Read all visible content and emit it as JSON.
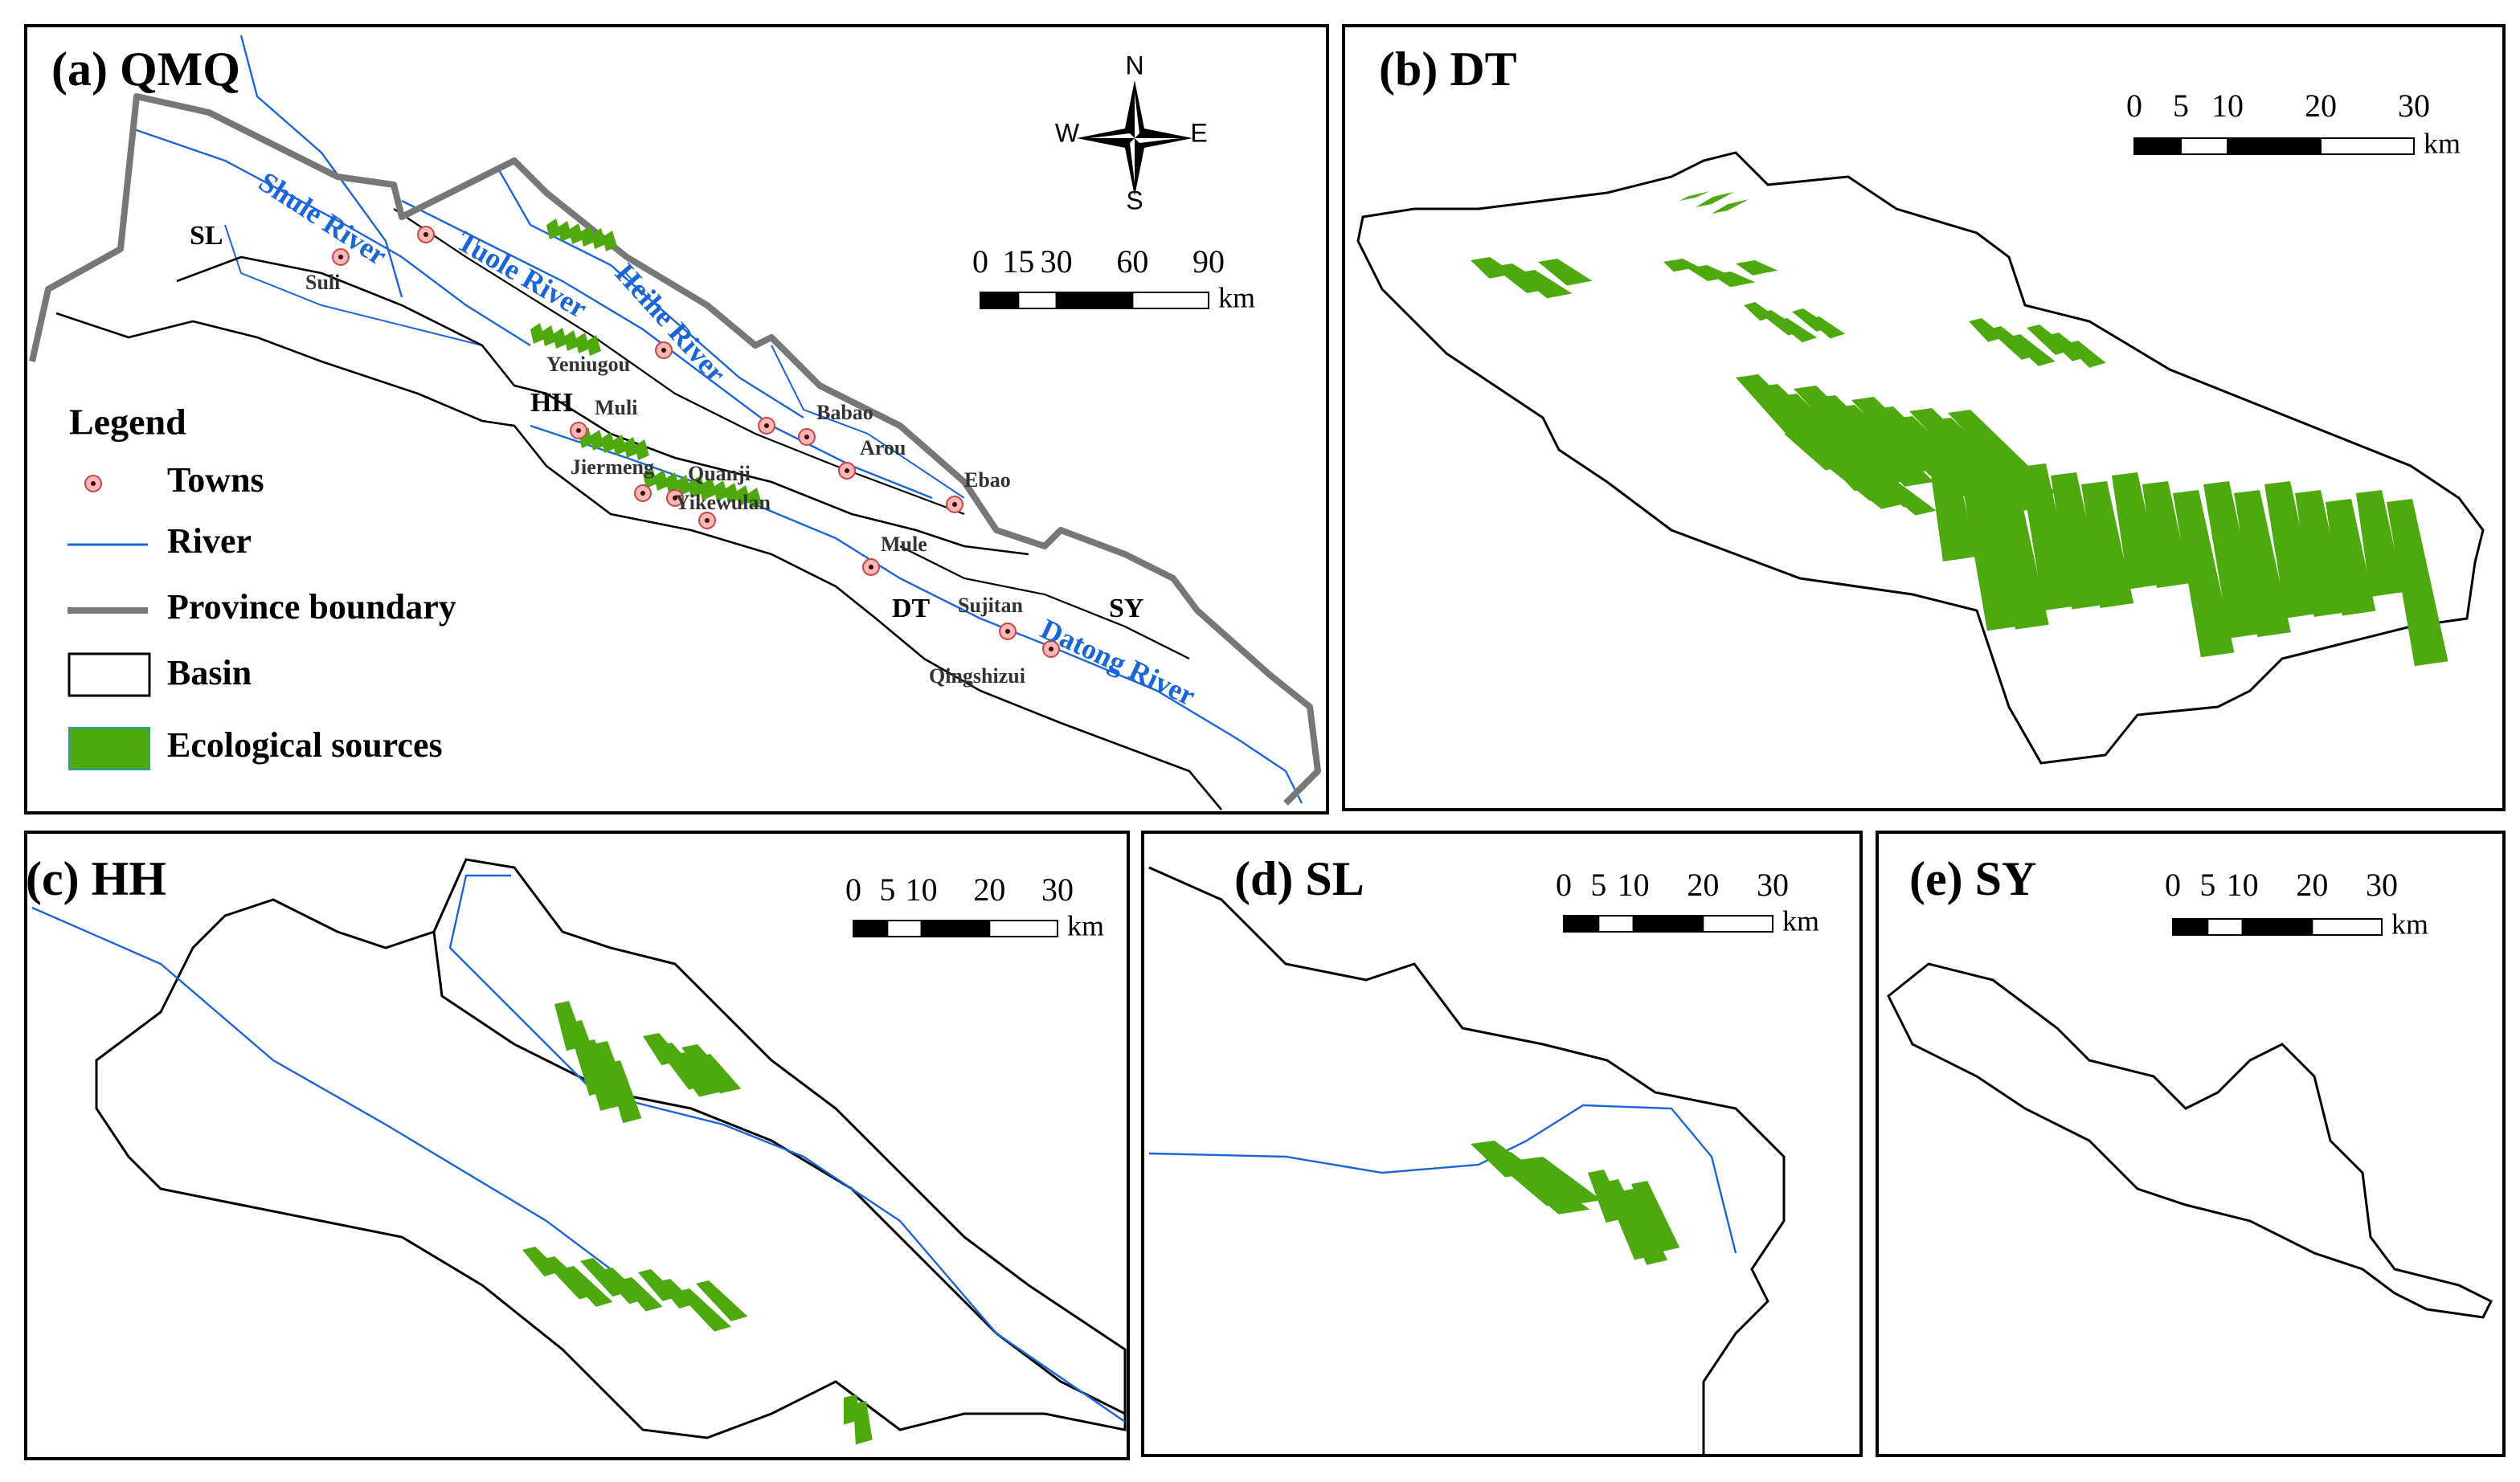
{
  "panels": [
    {
      "title": "(a) QMQ",
      "scale_bar": {
        "ticks": [
          0,
          15,
          30,
          60,
          90
        ],
        "unit": "km"
      }
    },
    {
      "title": "(b) DT",
      "scale_bar": {
        "ticks": [
          0,
          5,
          10,
          20,
          30
        ],
        "unit": "km"
      }
    },
    {
      "title": "(c) HH",
      "scale_bar": {
        "ticks": [
          0,
          5,
          10,
          20,
          30
        ],
        "unit": "km"
      }
    },
    {
      "title": "(d) SL",
      "scale_bar": {
        "ticks": [
          0,
          5,
          10,
          20,
          30
        ],
        "unit": "km"
      }
    },
    {
      "title": "(e) SY",
      "scale_bar": {
        "ticks": [
          0,
          5,
          10,
          20,
          30
        ],
        "unit": "km"
      }
    }
  ],
  "compass": {
    "n": "N",
    "s": "S",
    "w": "W",
    "e": "E"
  },
  "legend": {
    "title": "Legend",
    "items": [
      "Towns",
      "River",
      "Province boundary",
      "Basin",
      "Ecological sources"
    ]
  },
  "regions": [
    "SL",
    "HH",
    "DT",
    "SY"
  ],
  "rivers": [
    "Shule River",
    "Tuole River",
    "Heihe River",
    "Datong River"
  ],
  "towns": [
    "Suli",
    "Yeniugou",
    "Muli",
    "Jiermeng",
    "Quanji",
    "Yikewulan",
    "Babao",
    "Arou",
    "Ebao",
    "Mule",
    "Sujitan",
    "Qingshizui"
  ]
}
